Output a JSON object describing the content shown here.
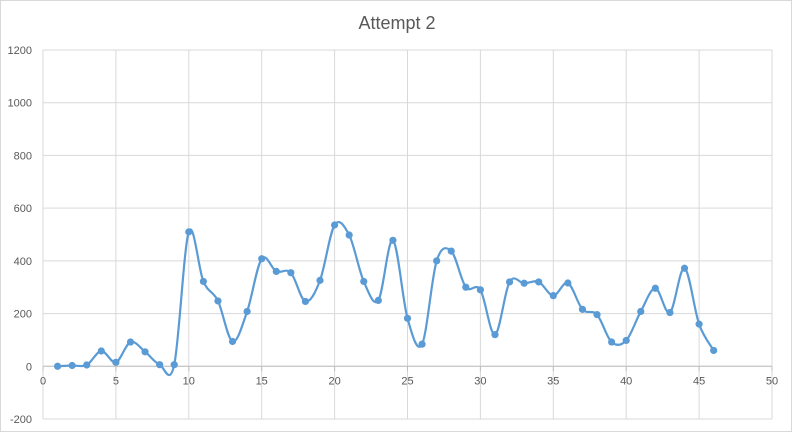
{
  "chart_data": {
    "type": "scatter",
    "title": "Attempt 2",
    "xlim": [
      0,
      50
    ],
    "ylim": [
      -200,
      1200
    ],
    "x_ticks": [
      0,
      5,
      10,
      15,
      20,
      25,
      30,
      35,
      40,
      45,
      50
    ],
    "y_ticks": [
      -200,
      0,
      200,
      400,
      600,
      800,
      1000,
      1200
    ],
    "grid": true,
    "line_style": "smoothed-with-markers",
    "series_color": "#5b9bd5",
    "series": [
      {
        "x": [
          1,
          2,
          3,
          4,
          5,
          6,
          7,
          8,
          9,
          10,
          11,
          12,
          13,
          14,
          15,
          16,
          17,
          18,
          19,
          20,
          21,
          22,
          23,
          24,
          25,
          26,
          27,
          28,
          29,
          30,
          31,
          32,
          33,
          34,
          35,
          36,
          37,
          38,
          39,
          40,
          41,
          42,
          43,
          44,
          45,
          46
        ],
        "values": [
          0,
          3,
          5,
          58,
          15,
          92,
          55,
          6,
          6,
          510,
          322,
          248,
          94,
          208,
          408,
          360,
          355,
          246,
          326,
          536,
          498,
          322,
          250,
          478,
          182,
          84,
          400,
          437,
          300,
          290,
          120,
          320,
          315,
          320,
          268,
          316,
          216,
          196,
          92,
          98,
          208,
          296,
          204,
          372,
          160,
          60
        ]
      }
    ]
  }
}
